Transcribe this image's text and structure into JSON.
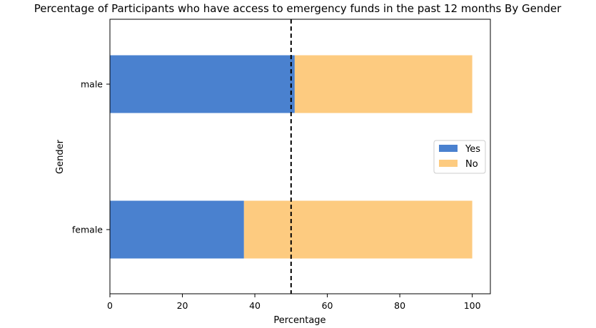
{
  "chart_data": {
    "type": "bar",
    "orientation": "horizontal",
    "stacked": true,
    "title": "Percentage of Participants who have access to emergency funds in the past 12 months By Gender",
    "xlabel": "Percentage",
    "ylabel": "Gender",
    "categories": [
      "female",
      "male"
    ],
    "series": [
      {
        "name": "Yes",
        "values": [
          37,
          51
        ],
        "color": "#4a81cf"
      },
      {
        "name": "No",
        "values": [
          63,
          49
        ],
        "color": "#fdcb80"
      }
    ],
    "xlim": [
      0,
      105
    ],
    "xticks": [
      0,
      20,
      40,
      60,
      80,
      100
    ],
    "xtick_labels": [
      "0",
      "20",
      "40",
      "60",
      "80",
      "100"
    ],
    "reference_line": {
      "x": 50,
      "style": "dashed",
      "color": "#000000"
    },
    "grid": false,
    "legend_position": "center-right"
  }
}
